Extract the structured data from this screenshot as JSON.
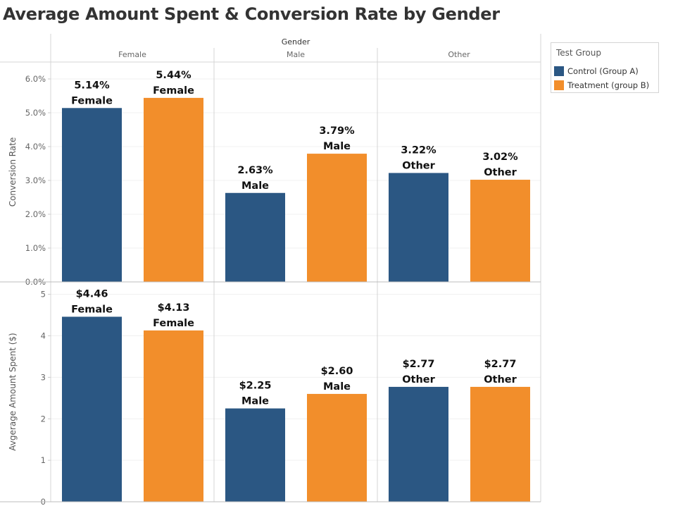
{
  "title": "Average Amount Spent & Conversion Rate by Gender",
  "colors": {
    "control": "#2b5783",
    "treatment": "#f28e2b"
  },
  "legend": {
    "title": "Test Group",
    "items": [
      {
        "label": "Control (Group A)",
        "color": "#2b5783"
      },
      {
        "label": "Treatment (group B)",
        "color": "#f28e2b"
      }
    ]
  },
  "chart_data": {
    "type": "bar",
    "column_header": "Gender",
    "categories": [
      "Female",
      "Male",
      "Other"
    ],
    "series": [
      {
        "name": "Control (Group A)",
        "color": "#2b5783"
      },
      {
        "name": "Treatment (group B)",
        "color": "#f28e2b"
      }
    ],
    "panels": [
      {
        "ylabel": "Conversion Rate",
        "ylim": [
          0,
          0.065
        ],
        "ticks": [
          0,
          0.01,
          0.02,
          0.03,
          0.04,
          0.05,
          0.06
        ],
        "tick_labels": [
          "0.0%",
          "1.0%",
          "2.0%",
          "3.0%",
          "4.0%",
          "5.0%",
          "6.0%"
        ],
        "values": [
          [
            0.0514,
            0.0544
          ],
          [
            0.0263,
            0.0379
          ],
          [
            0.0322,
            0.0302
          ]
        ],
        "labels": [
          [
            "5.14%",
            "5.44%"
          ],
          [
            "2.63%",
            "3.79%"
          ],
          [
            "3.22%",
            "3.02%"
          ]
        ]
      },
      {
        "ylabel": "Avgerage Amount Spent ($)",
        "ylim": [
          0,
          5.3
        ],
        "ticks": [
          0,
          1,
          2,
          3,
          4,
          5
        ],
        "tick_labels": [
          "0",
          "1",
          "2",
          "3",
          "4",
          "5"
        ],
        "values": [
          [
            4.46,
            4.13
          ],
          [
            2.25,
            2.6
          ],
          [
            2.77,
            2.77
          ]
        ],
        "labels": [
          [
            "$4.46",
            "$4.13"
          ],
          [
            "$2.25",
            "$2.60"
          ],
          [
            "$2.77",
            "$2.77"
          ]
        ]
      }
    ],
    "grid": true,
    "legend_position": "top-right"
  }
}
